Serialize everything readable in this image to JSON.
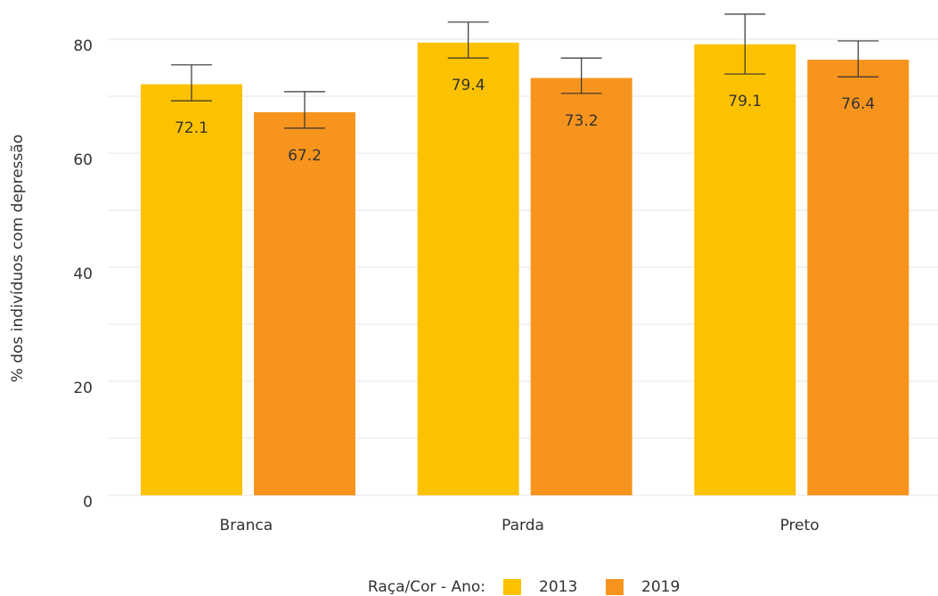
{
  "chart_data": {
    "type": "bar",
    "y_axis_label": "% dos indivíduos com depressão",
    "categories": [
      "Branca",
      "Parda",
      "Preto"
    ],
    "legend_title": "Raça/Cor - Ano:",
    "series": [
      {
        "name": "2013",
        "color": "#fcc200",
        "values": [
          72.1,
          79.4,
          79.1
        ],
        "ci": [
          [
            69.2,
            75.5
          ],
          [
            76.7,
            83.0
          ],
          [
            73.9,
            84.4
          ]
        ]
      },
      {
        "name": "2019",
        "color": "#f7941d",
        "values": [
          67.2,
          73.2,
          76.4
        ],
        "ci": [
          [
            64.4,
            70.8
          ],
          [
            70.5,
            76.7
          ],
          [
            73.4,
            79.7
          ]
        ]
      }
    ],
    "ylim": [
      0,
      80
    ],
    "yticks": [
      0,
      20,
      40,
      60,
      80
    ],
    "minor_yticks": [
      10,
      30,
      50,
      70
    ],
    "grid": true,
    "legend": "bottom"
  }
}
